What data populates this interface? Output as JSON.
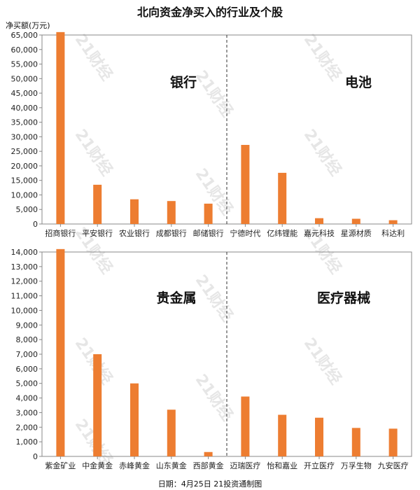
{
  "title": "北向资金净买入的行业及个股",
  "unit_label": "净买额(万元)",
  "footer": "日期：4月25日 21投资通制图",
  "watermark": "21财经",
  "colors": {
    "bar": "#ED7D31",
    "axis": "#888888",
    "divider": "#333333"
  },
  "chart_data": [
    {
      "type": "bar",
      "ylim": [
        0,
        65000
      ],
      "ytick_step": 5000,
      "ytick_labels": [
        "0",
        "5,000",
        "10,000",
        "15,000",
        "20,000",
        "25,000",
        "30,000",
        "35,000",
        "40,000",
        "45,000",
        "50,000",
        "55,000",
        "60,000",
        "65,000"
      ],
      "categories": [
        "招商银行",
        "平安银行",
        "农业银行",
        "成都银行",
        "邮储银行",
        "宁德时代",
        "亿纬锂能",
        "嘉元科技",
        "星源材质",
        "科达利"
      ],
      "values": [
        66000,
        13500,
        8500,
        7900,
        7000,
        27200,
        17600,
        2000,
        1800,
        1300
      ],
      "segments": [
        {
          "label": "银行",
          "count": 5
        },
        {
          "label": "电池",
          "count": 5
        }
      ]
    },
    {
      "type": "bar",
      "ylim": [
        0,
        14000
      ],
      "ytick_step": 1000,
      "ytick_labels": [
        "0",
        "1,000",
        "2,000",
        "3,000",
        "4,000",
        "5,000",
        "6,000",
        "7,000",
        "8,000",
        "9,000",
        "10,000",
        "11,000",
        "12,000",
        "13,000",
        "14,000"
      ],
      "categories": [
        "紫金矿业",
        "中金黄金",
        "赤峰黄金",
        "山东黄金",
        "西部黄金",
        "迈瑞医疗",
        "怡和嘉业",
        "开立医疗",
        "万孚生物",
        "九安医疗"
      ],
      "values": [
        14200,
        7000,
        5000,
        3200,
        300,
        4100,
        2850,
        2650,
        1950,
        1900
      ],
      "segments": [
        {
          "label": "贵金属",
          "count": 5
        },
        {
          "label": "医疗器械",
          "count": 5
        }
      ]
    }
  ]
}
